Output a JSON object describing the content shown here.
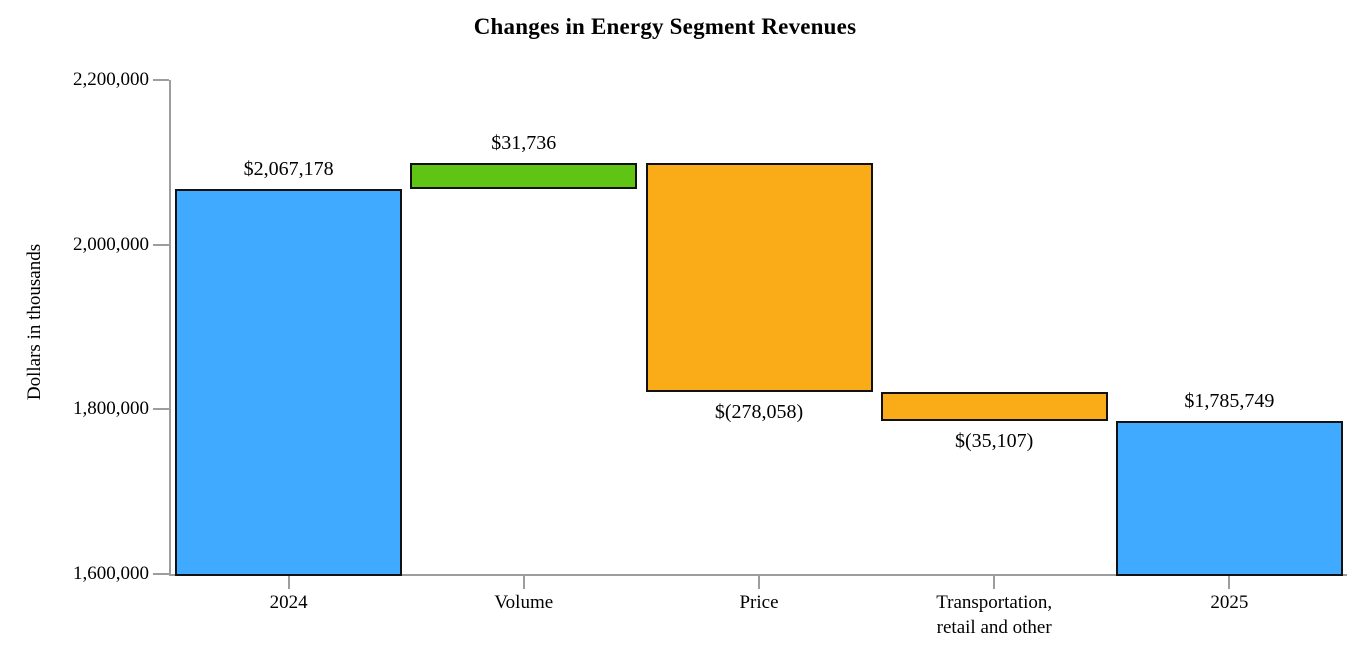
{
  "chart_data": {
    "type": "waterfall",
    "title": "Changes in Energy Segment Revenues",
    "ylabel": "Dollars in thousands",
    "ylim": [
      1600000,
      2200000
    ],
    "grid": false,
    "legend": false,
    "yticks": [
      {
        "value": 2200000,
        "label": "2,200,000"
      },
      {
        "value": 2000000,
        "label": "2,000,000"
      },
      {
        "value": 1800000,
        "label": "1,800,000"
      },
      {
        "value": 1600000,
        "label": "1,600,000"
      }
    ],
    "categories": [
      "2024",
      "Volume",
      "Price",
      "Transportation,\nretail and other",
      "2025"
    ],
    "bars": [
      {
        "category": "2024",
        "from": 1600000,
        "to": 2067178,
        "change": 467178,
        "value_label": "$2,067,178",
        "label_position": "above",
        "role": "total",
        "color": "#3FAAFF"
      },
      {
        "category": "Volume",
        "from": 2067178,
        "to": 2098914,
        "change": 31736,
        "value_label": "$31,736",
        "label_position": "above",
        "role": "increase",
        "color": "#5FC414"
      },
      {
        "category": "Price",
        "from": 2098914,
        "to": 1820856,
        "change": -278058,
        "value_label": "$(278,058)",
        "label_position": "below",
        "role": "decrease",
        "color": "#F9AC18"
      },
      {
        "category": "Transportation,\nretail and other",
        "from": 1820856,
        "to": 1785749,
        "change": -35107,
        "value_label": "$(35,107)",
        "label_position": "below",
        "role": "decrease",
        "color": "#F9AC18"
      },
      {
        "category": "2025",
        "from": 1600000,
        "to": 1785749,
        "change": 185749,
        "value_label": "$1,785,749",
        "label_position": "above",
        "role": "total",
        "color": "#3FAAFF"
      }
    ],
    "colors": {
      "total": "#3FAAFF",
      "increase": "#5FC414",
      "decrease": "#F9AC18",
      "bar_border": "#111111",
      "axis": "#9d9d9d",
      "text": "#000000",
      "background": "#FFFFFF"
    }
  }
}
